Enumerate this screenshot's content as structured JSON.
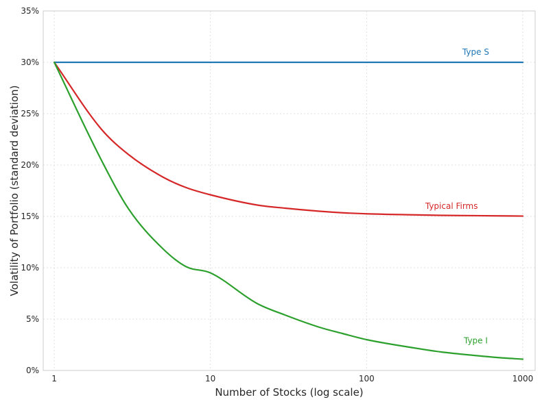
{
  "chart_data": {
    "type": "line",
    "title": "",
    "xlabel": "Number of Stocks (log scale)",
    "ylabel": "Volatility of Portfolio (standard deviation)",
    "x_scale": "log",
    "xlim": [
      0.85,
      1200
    ],
    "ylim": [
      0,
      35
    ],
    "x_ticks": [
      1,
      10,
      100,
      1000
    ],
    "x_tick_labels": [
      "1",
      "10",
      "100",
      "1000"
    ],
    "y_ticks": [
      0,
      5,
      10,
      15,
      20,
      25,
      30,
      35
    ],
    "y_tick_labels": [
      "0%",
      "5%",
      "10%",
      "15%",
      "20%",
      "25%",
      "30%",
      "35%"
    ],
    "grid": true,
    "x": [
      1,
      2,
      3,
      5,
      7,
      10,
      20,
      30,
      50,
      70,
      100,
      200,
      300,
      500,
      700,
      1000
    ],
    "series": [
      {
        "name": "Type S",
        "color": "#1f77b4",
        "label_at": [
          500,
          31
        ],
        "values": [
          30,
          30,
          30,
          30,
          30,
          30,
          30,
          30,
          30,
          30,
          30,
          30,
          30,
          30,
          30,
          30
        ]
      },
      {
        "name": "Typical Firms",
        "color": "#d62728",
        "label_at": [
          350,
          16
        ],
        "values": [
          30,
          23.5,
          21.0,
          18.8,
          17.8,
          17.1,
          16.1,
          15.8,
          15.5,
          15.35,
          15.25,
          15.15,
          15.1,
          15.07,
          15.05,
          15.03
        ]
      },
      {
        "name": "Type I",
        "color": "#2ca02c",
        "label_at": [
          500,
          2.9
        ],
        "values": [
          30,
          20.5,
          15.7,
          11.8,
          10.1,
          9.5,
          6.5,
          5.4,
          4.2,
          3.6,
          3.0,
          2.2,
          1.8,
          1.45,
          1.25,
          1.1
        ]
      }
    ]
  }
}
